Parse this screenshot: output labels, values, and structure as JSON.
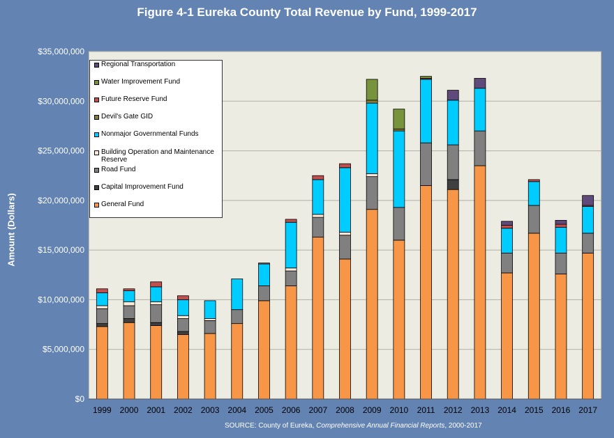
{
  "chart_data": {
    "type": "bar",
    "stacked": true,
    "title": "Figure 4-1 Eureka County Total Revenue by Fund, 1999-2017",
    "ylabel": "Amount (Dollars)",
    "xlabel": "",
    "ylim": [
      0,
      35000000
    ],
    "yticks": [
      "$0",
      "$5,000,000",
      "$10,000,000",
      "$15,000,000",
      "$20,000,000",
      "$25,000,000",
      "$30,000,000",
      "$35,000,000"
    ],
    "grid": true,
    "legend_placement": "top-left",
    "plot_background": "#ecece2",
    "categories": [
      "1999",
      "2000",
      "2001",
      "2002",
      "2003",
      "2004",
      "2005",
      "2006",
      "2007",
      "2008",
      "2009",
      "2010",
      "2011",
      "2012",
      "2013",
      "2014",
      "2015",
      "2016",
      "2017"
    ],
    "series": [
      {
        "name": "General Fund",
        "color": "#f79646",
        "values": [
          7300000,
          7700000,
          7400000,
          6500000,
          6600000,
          7600000,
          9900000,
          11400000,
          16300000,
          14100000,
          19100000,
          16000000,
          21500000,
          21100000,
          23500000,
          12700000,
          16700000,
          12600000,
          14700000
        ]
      },
      {
        "name": "Capital Improvement Fund",
        "color": "#404040",
        "values": [
          300000,
          400000,
          300000,
          300000,
          0,
          0,
          0,
          0,
          0,
          0,
          0,
          0,
          0,
          1000000,
          0,
          0,
          0,
          0,
          0
        ]
      },
      {
        "name": "Road Fund",
        "color": "#808080",
        "values": [
          1500000,
          1300000,
          1800000,
          1300000,
          1300000,
          1400000,
          1500000,
          1500000,
          2000000,
          2400000,
          3300000,
          3300000,
          4300000,
          3500000,
          3500000,
          2000000,
          2800000,
          2100000,
          2000000
        ]
      },
      {
        "name": "Building Operation and Maintenance Reserve",
        "color": "#fde9d9",
        "values": [
          300000,
          400000,
          300000,
          300000,
          200000,
          0,
          0,
          300000,
          300000,
          300000,
          300000,
          0,
          0,
          0,
          0,
          0,
          0,
          0,
          0
        ]
      },
      {
        "name": "Nonmajor Governmental Funds",
        "color": "#00ccff",
        "values": [
          1300000,
          1100000,
          1500000,
          1600000,
          1800000,
          3100000,
          2200000,
          4600000,
          3500000,
          6500000,
          7100000,
          7700000,
          6400000,
          4500000,
          4300000,
          2500000,
          2400000,
          2600000,
          2700000
        ]
      },
      {
        "name": "Devil's Gate GID",
        "color": "#8a7a3a",
        "values": [
          0,
          0,
          0,
          0,
          0,
          0,
          0,
          0,
          0,
          0,
          300000,
          200000,
          0,
          0,
          0,
          0,
          0,
          0,
          0
        ]
      },
      {
        "name": "Future Reserve Fund",
        "color": "#c0504d",
        "values": [
          400000,
          200000,
          500000,
          400000,
          0,
          0,
          100000,
          300000,
          400000,
          400000,
          0,
          0,
          100000,
          0,
          0,
          300000,
          200000,
          300000,
          100000
        ]
      },
      {
        "name": "Water Improvement Fund",
        "color": "#77933c",
        "values": [
          0,
          0,
          0,
          0,
          0,
          0,
          0,
          0,
          0,
          0,
          2100000,
          2000000,
          200000,
          0,
          0,
          0,
          0,
          0,
          0
        ]
      },
      {
        "name": "Regional Transportation",
        "color": "#604a7b",
        "values": [
          0,
          0,
          0,
          0,
          0,
          0,
          0,
          0,
          0,
          0,
          0,
          0,
          0,
          1000000,
          1000000,
          400000,
          0,
          400000,
          1000000
        ]
      }
    ],
    "source_text_prefix": "SOURCE: County of Eureka, ",
    "source_text_italic": "Comprehensive Annual Financial Reports",
    "source_text_suffix": ", 2000-2017"
  },
  "legend": [
    {
      "label": "Regional Transportation",
      "color": "#604a7b"
    },
    {
      "label": " Water Improvement Fund",
      "color": "#77933c"
    },
    {
      "label": "Future Reserve Fund",
      "color": "#c0504d"
    },
    {
      "label": "Devil's Gate GID",
      "color": "#8a7a3a"
    },
    {
      "label": "Nonmajor Governmental Funds",
      "color": "#00ccff"
    },
    {
      "label": "Building Operation and Maintenance Reserve",
      "color": "#fde9d9"
    },
    {
      "label": "Road Fund",
      "color": "#808080"
    },
    {
      "label": "Capital Improvement Fund",
      "color": "#404040"
    },
    {
      "label": "General Fund",
      "color": "#f79646"
    }
  ]
}
